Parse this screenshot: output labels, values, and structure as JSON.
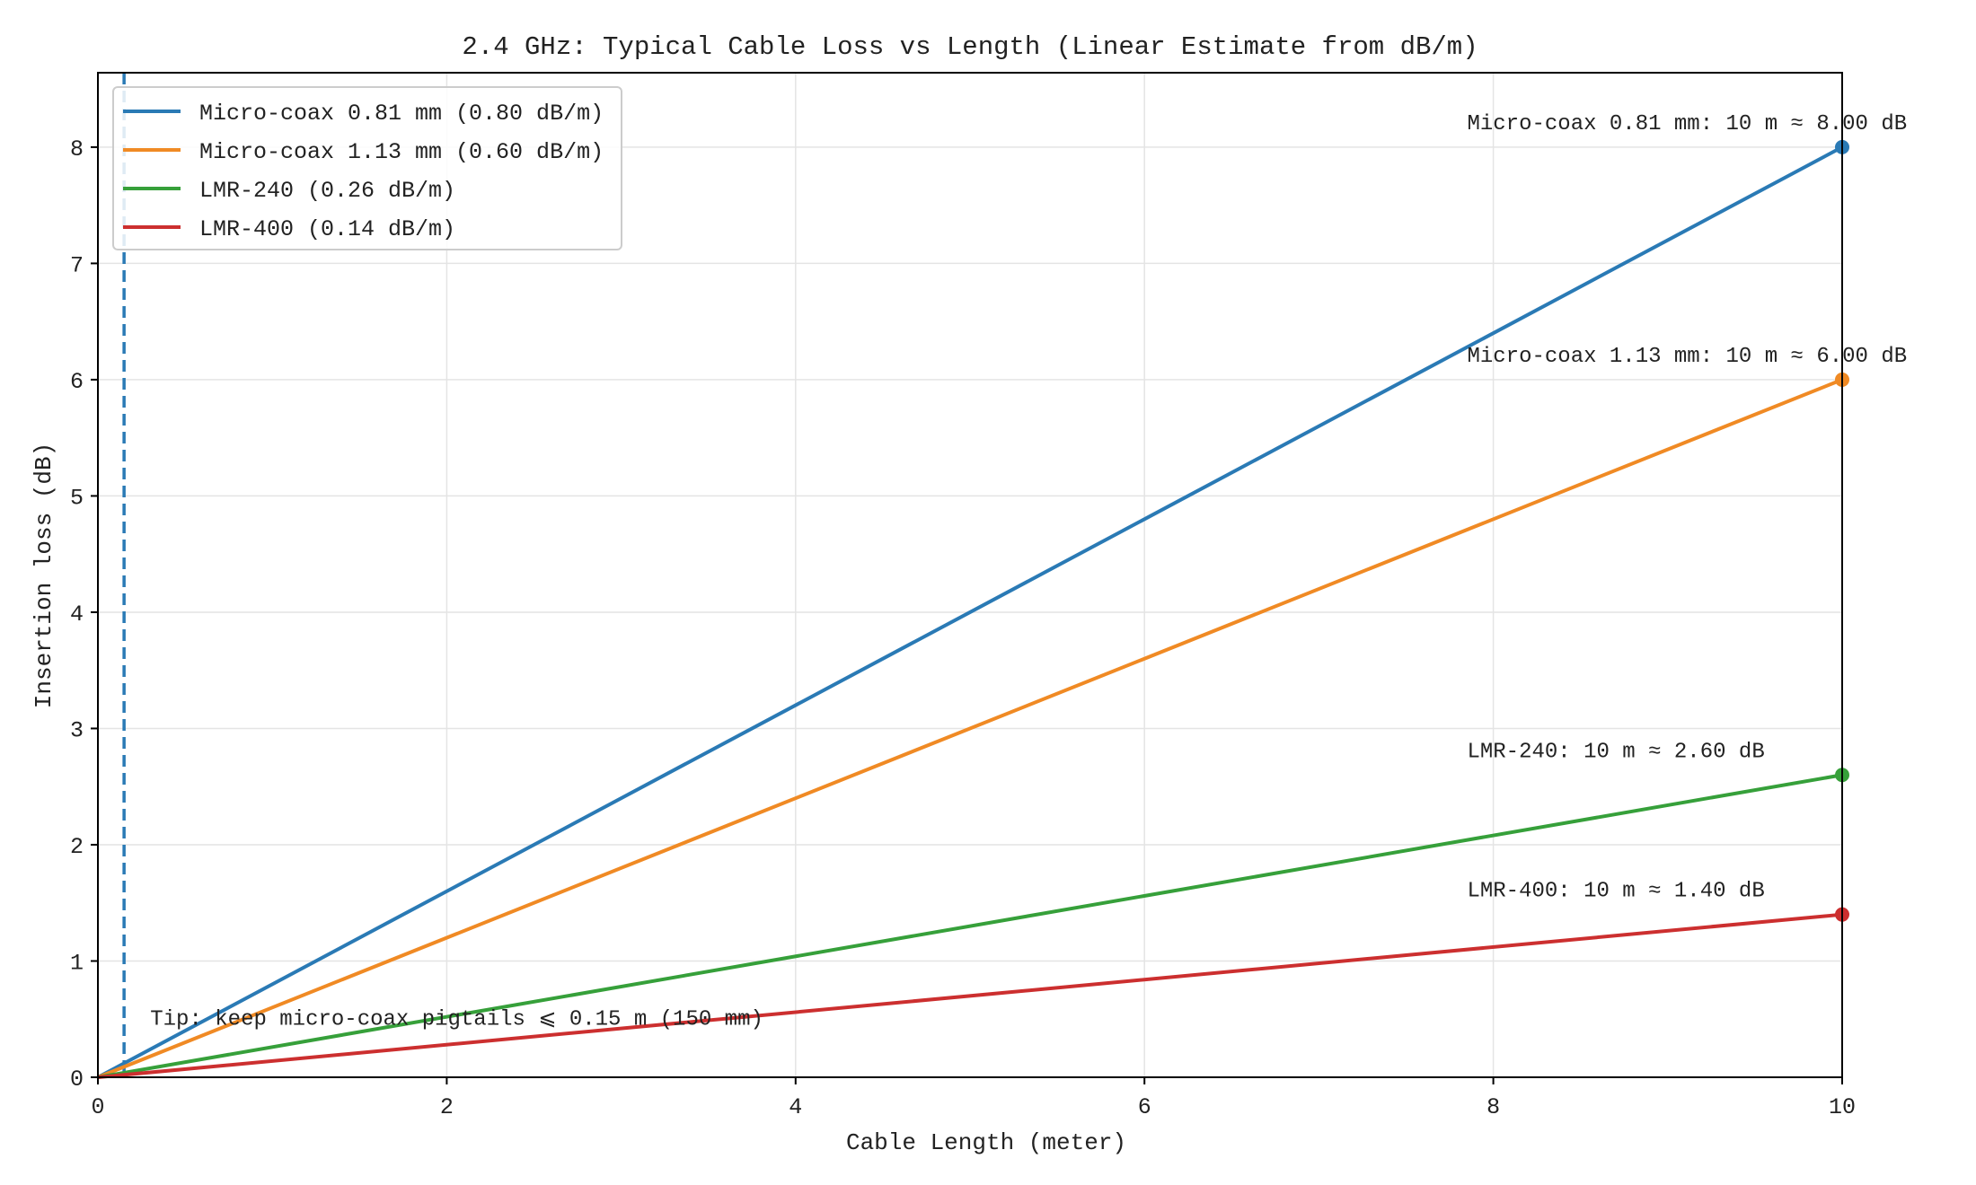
{
  "chart_data": {
    "type": "line",
    "title": "2.4 GHz: Typical Cable Loss vs Length (Linear Estimate from dB/m)",
    "xlabel": "Cable Length (meter)",
    "ylabel": "Insertion loss (dB)",
    "xlim": [
      0,
      10
    ],
    "ylim": [
      0,
      8.64
    ],
    "xticks": [
      0,
      2,
      4,
      6,
      8,
      10
    ],
    "yticks": [
      0,
      1,
      2,
      3,
      4,
      5,
      6,
      7,
      8
    ],
    "grid": true,
    "legend_position": "top-left",
    "series": [
      {
        "name": "Micro-coax 0.81 mm (0.80 dB/m)",
        "color": "#2a7ab5",
        "x": [
          0,
          10
        ],
        "y": [
          0,
          8.0
        ],
        "end_label": "Micro-coax 0.81 mm: 10 m ≈ 8.00 dB"
      },
      {
        "name": "Micro-coax 1.13 mm (0.60 dB/m)",
        "color": "#f08a24",
        "x": [
          0,
          10
        ],
        "y": [
          0,
          6.0
        ],
        "end_label": "Micro-coax 1.13 mm: 10 m ≈ 6.00 dB"
      },
      {
        "name": "LMR-240 (0.26 dB/m)",
        "color": "#36a03a",
        "x": [
          0,
          10
        ],
        "y": [
          0,
          2.6
        ],
        "end_label": "LMR-240: 10 m ≈ 2.60 dB"
      },
      {
        "name": "LMR-400 (0.14 dB/m)",
        "color": "#cc2f2f",
        "x": [
          0,
          10
        ],
        "y": [
          0,
          1.4
        ],
        "end_label": "LMR-400: 10 m ≈ 1.40 dB"
      }
    ],
    "reference_line": {
      "x": 0.15,
      "style": "dashed",
      "color": "#2a7ab5"
    },
    "annotation": {
      "text": "Tip: keep micro-coax pigtails ⩽ 0.15 m (150 mm)",
      "x": 0.3,
      "y": 0.45
    }
  }
}
